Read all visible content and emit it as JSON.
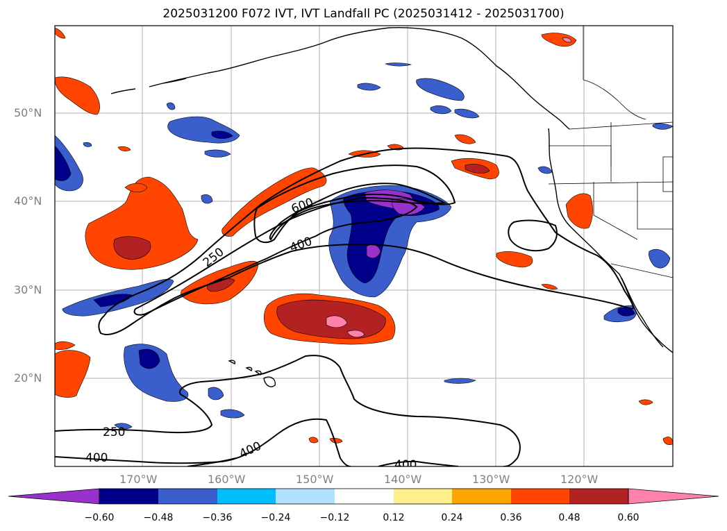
{
  "title": "2025031200 F072 IVT, IVT Landfall PC (2025031412 - 2025031700)",
  "lat_labels": [
    "50°N",
    "40°N",
    "30°N",
    "20°N"
  ],
  "lon_labels": [
    "170°W",
    "160°W",
    "150°W",
    "140°W",
    "130°W",
    "120°W"
  ],
  "contour_labels": [
    "600",
    "400",
    "250",
    "250",
    "400",
    "400",
    "400"
  ],
  "colorbar": {
    "tick_labels": [
      "−0.60",
      "−0.48",
      "−0.36",
      "−0.24",
      "−0.12",
      "0.12",
      "0.24",
      "0.36",
      "0.48",
      "0.60"
    ],
    "colors": [
      "#9932cc",
      "#00008b",
      "#3a5fcd",
      "#00bfff",
      "#b0e2ff",
      "#ffffff",
      "#fff08c",
      "#ffa500",
      "#ff4500",
      "#b22222",
      "#ff82ab"
    ]
  },
  "colors": {
    "land_outline": "#000000",
    "grid": "#b0b0b0",
    "contour": "#000000"
  }
}
